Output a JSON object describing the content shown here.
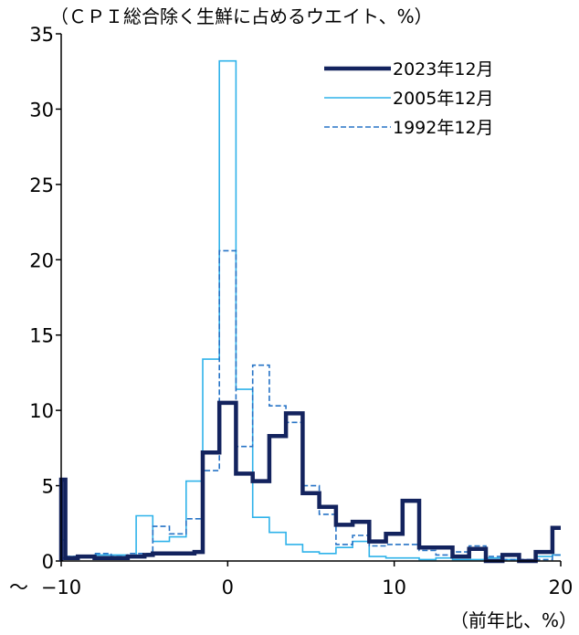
{
  "chart_data": {
    "type": "line",
    "step": true,
    "y_unit_label": "（ＣＰＩ総合除く生鮮に占めるウエイト、%）",
    "x_unit_label": "（前年比、%）",
    "x_min_marker": "～",
    "xlim": [
      -10,
      20
    ],
    "ylim": [
      0,
      35
    ],
    "x_ticks": [
      {
        "value": -10,
        "label": "−10"
      },
      {
        "value": 0,
        "label": "0"
      },
      {
        "value": 10,
        "label": "10"
      },
      {
        "value": 20,
        "label": "20"
      }
    ],
    "y_ticks": [
      {
        "value": 0,
        "label": "0"
      },
      {
        "value": 5,
        "label": "5"
      },
      {
        "value": 10,
        "label": "10"
      },
      {
        "value": 15,
        "label": "15"
      },
      {
        "value": 20,
        "label": "20"
      },
      {
        "value": 25,
        "label": "25"
      },
      {
        "value": 30,
        "label": "30"
      },
      {
        "value": 35,
        "label": "35"
      }
    ],
    "legend_position": "top-right",
    "series": [
      {
        "name": "2023年12月",
        "color": "#13235e",
        "style": "thick",
        "points": [
          [
            -10,
            5.4
          ],
          [
            -9.75,
            0.2
          ],
          [
            -9,
            0.3
          ],
          [
            -8,
            0.2
          ],
          [
            -7,
            0.2
          ],
          [
            -6,
            0.3
          ],
          [
            -5,
            0.4
          ],
          [
            -4.5,
            0.5
          ],
          [
            -3,
            0.5
          ],
          [
            -2,
            0.6
          ],
          [
            -1.5,
            7.2
          ],
          [
            -0.5,
            10.5
          ],
          [
            0.5,
            5.8
          ],
          [
            1.5,
            5.3
          ],
          [
            2.5,
            8.3
          ],
          [
            3.5,
            9.8
          ],
          [
            4.5,
            4.5
          ],
          [
            5.5,
            3.6
          ],
          [
            6.5,
            2.4
          ],
          [
            7.5,
            2.6
          ],
          [
            8.5,
            1.3
          ],
          [
            9.5,
            1.8
          ],
          [
            10.5,
            4.0
          ],
          [
            11.5,
            0.9
          ],
          [
            12.5,
            0.9
          ],
          [
            13.5,
            0.3
          ],
          [
            14.5,
            0.8
          ],
          [
            15.5,
            0.0
          ],
          [
            16.5,
            0.4
          ],
          [
            17.5,
            0.0
          ],
          [
            18.5,
            0.6
          ],
          [
            19.5,
            2.2
          ],
          [
            20,
            2.2
          ]
        ]
      },
      {
        "name": "2005年12月",
        "color": "#2eb2ea",
        "style": "thin",
        "points": [
          [
            -10,
            1.4
          ],
          [
            -9.75,
            0.3
          ],
          [
            -9,
            0.3
          ],
          [
            -8,
            0.4
          ],
          [
            -7,
            0.4
          ],
          [
            -6,
            0.3
          ],
          [
            -5.5,
            3.0
          ],
          [
            -4.5,
            1.3
          ],
          [
            -3.5,
            1.6
          ],
          [
            -2.5,
            5.3
          ],
          [
            -1.5,
            13.4
          ],
          [
            -0.5,
            33.2
          ],
          [
            0.5,
            11.4
          ],
          [
            1.5,
            2.9
          ],
          [
            2.5,
            1.9
          ],
          [
            3.5,
            1.1
          ],
          [
            4.5,
            0.6
          ],
          [
            5.5,
            0.5
          ],
          [
            6.5,
            0.9
          ],
          [
            7.5,
            1.3
          ],
          [
            8.5,
            0.3
          ],
          [
            9.5,
            0.2
          ],
          [
            10.5,
            0.2
          ],
          [
            11.5,
            0.1
          ],
          [
            12.5,
            0.2
          ],
          [
            13.5,
            0.1
          ],
          [
            14.5,
            0.1
          ],
          [
            15.5,
            0.2
          ],
          [
            16.5,
            0.1
          ],
          [
            17.5,
            0.0
          ],
          [
            18.5,
            0.3
          ],
          [
            19.5,
            0.4
          ],
          [
            20,
            0.4
          ]
        ]
      },
      {
        "name": "1992年12月",
        "color": "#2673c6",
        "style": "dashed",
        "points": [
          [
            -10,
            0.2
          ],
          [
            -9.75,
            0.3
          ],
          [
            -8,
            0.5
          ],
          [
            -7,
            0.3
          ],
          [
            -6,
            0.5
          ],
          [
            -5.5,
            0.5
          ],
          [
            -4.5,
            2.3
          ],
          [
            -3.5,
            1.8
          ],
          [
            -2.5,
            2.8
          ],
          [
            -1.5,
            6.0
          ],
          [
            -0.5,
            20.6
          ],
          [
            0.5,
            7.6
          ],
          [
            1.5,
            13.0
          ],
          [
            2.5,
            10.3
          ],
          [
            3.5,
            9.2
          ],
          [
            4.5,
            5.0
          ],
          [
            5.5,
            3.1
          ],
          [
            6.5,
            1.1
          ],
          [
            7.5,
            1.7
          ],
          [
            8.5,
            1.0
          ],
          [
            9.5,
            1.1
          ],
          [
            10.5,
            1.1
          ],
          [
            11.5,
            0.7
          ],
          [
            12.5,
            0.4
          ],
          [
            13.5,
            0.6
          ],
          [
            14.5,
            1.0
          ],
          [
            15.5,
            0.3
          ],
          [
            16.5,
            0.1
          ],
          [
            17.5,
            0.1
          ],
          [
            18.5,
            0.1
          ],
          [
            19.5,
            0.4
          ],
          [
            20,
            0.4
          ]
        ]
      }
    ]
  }
}
